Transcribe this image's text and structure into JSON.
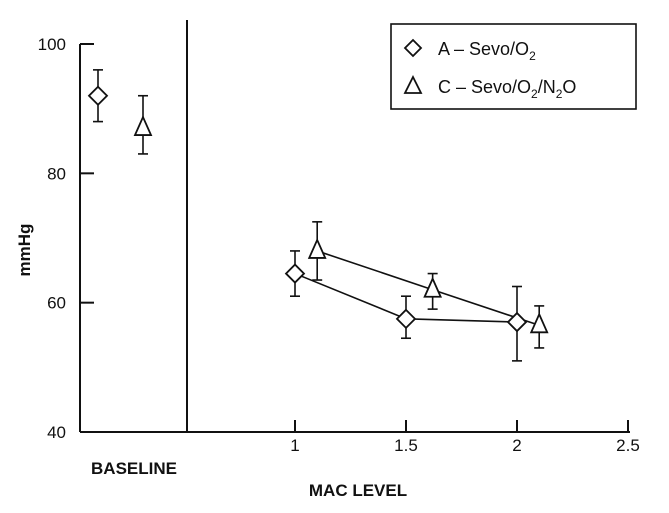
{
  "chart_data": {
    "type": "scatter",
    "ylabel": "mmHg",
    "xlabel": "MAC LEVEL",
    "baseline_label": "BASELINE",
    "ylim": [
      40,
      100
    ],
    "yticks": [
      40,
      60,
      80,
      100
    ],
    "xlim": [
      0.5,
      2.5
    ],
    "xticks": [
      1,
      1.5,
      2,
      2.5
    ],
    "xtick_labels": [
      "1",
      "1.5",
      "2",
      "2.5"
    ],
    "grid": false,
    "legend_position": "top-right",
    "series": [
      {
        "name": "A – Sevo/O2",
        "legend_prefix": "A – Sevo/O",
        "legend_sub": "2",
        "legend_suffix": "",
        "marker": "diamond",
        "baseline": {
          "y": 92,
          "err_low": 88,
          "err_high": 96
        },
        "x": [
          1,
          1.5,
          2
        ],
        "y": [
          64.5,
          57.5,
          57
        ],
        "err_low": [
          61,
          54.5,
          51
        ],
        "err_high": [
          68,
          61,
          62.5
        ]
      },
      {
        "name": "C – Sevo/O2/N2O",
        "legend_prefix": "C – Sevo/O",
        "legend_sub": "2",
        "legend_suffix": "/N",
        "legend_sub2": "2",
        "legend_suffix2": "O",
        "marker": "triangle",
        "baseline": {
          "y": 87,
          "err_low": 83,
          "err_high": 92
        },
        "x": [
          1.1,
          1.62,
          2.1
        ],
        "y": [
          68,
          62,
          56.5
        ],
        "err_low": [
          63.5,
          59,
          53
        ],
        "err_high": [
          72.5,
          64.5,
          59.5
        ]
      }
    ]
  }
}
